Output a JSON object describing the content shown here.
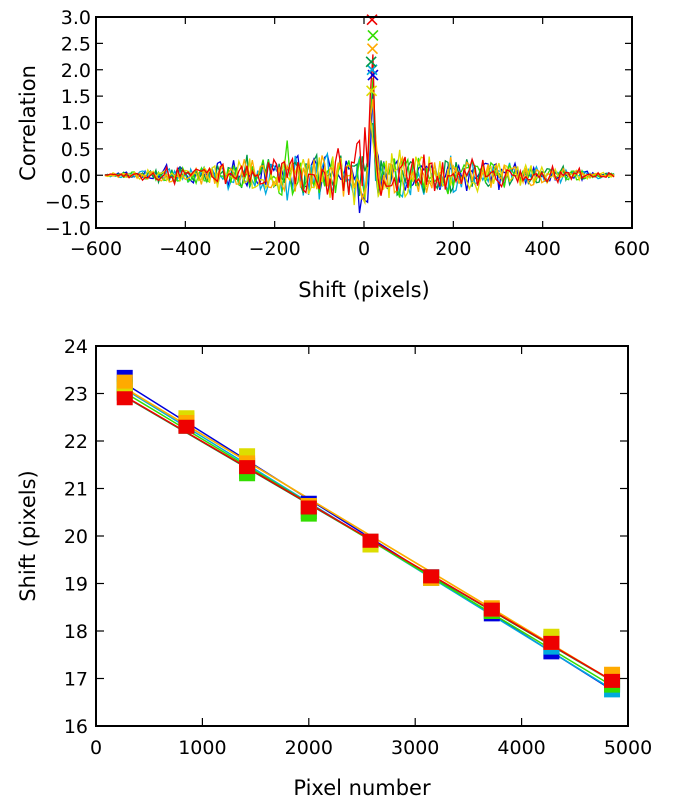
{
  "chart_data": [
    {
      "type": "line",
      "xlabel": "Shift (pixels)",
      "ylabel": "Correlation",
      "xlim": [
        -600,
        600
      ],
      "ylim": [
        -1.0,
        3.0
      ],
      "xticks": [
        "−600",
        "−400",
        "−200",
        "0",
        "200",
        "400",
        "600"
      ],
      "yticks": [
        "−1.0",
        "−0.5",
        "0.0",
        "0.5",
        "1.0",
        "1.5",
        "2.0",
        "2.5",
        "3.0"
      ],
      "grid": false,
      "legend": "none",
      "series": [
        {
          "color": "#0000dd",
          "peak_x": 20,
          "peak_y": 1.9,
          "marker": "x"
        },
        {
          "color": "#00aadd",
          "peak_x": 18,
          "peak_y": 2.0,
          "marker": "x"
        },
        {
          "color": "#009944",
          "peak_x": 16,
          "peak_y": 2.15,
          "marker": "x"
        },
        {
          "color": "#33dd00",
          "peak_x": 20,
          "peak_y": 2.65,
          "marker": "x"
        },
        {
          "color": "#dddd00",
          "peak_x": 17,
          "peak_y": 1.6,
          "marker": "x"
        },
        {
          "color": "#ffaa00",
          "peak_x": 19,
          "peak_y": 2.4,
          "marker": "x"
        },
        {
          "color": "#ee0000",
          "peak_x": 18,
          "peak_y": 2.95,
          "marker": "x"
        }
      ]
    },
    {
      "type": "line",
      "xlabel": "Pixel number",
      "ylabel": "Shift (pixels)",
      "xlim": [
        0,
        5000
      ],
      "ylim": [
        16,
        24
      ],
      "xticks": [
        "0",
        "1000",
        "2000",
        "3000",
        "4000",
        "5000"
      ],
      "yticks": [
        "16",
        "17",
        "18",
        "19",
        "20",
        "21",
        "22",
        "23",
        "24"
      ],
      "grid": false,
      "legend": "none",
      "x": [
        270,
        850,
        1420,
        2000,
        2580,
        3150,
        3720,
        4280,
        4850
      ],
      "series": [
        {
          "color": "#0000dd",
          "values": [
            23.35,
            22.4,
            21.5,
            20.7,
            19.9,
            19.15,
            18.35,
            17.55,
            16.85
          ]
        },
        {
          "color": "#00aadd",
          "values": [
            23.2,
            22.35,
            21.4,
            20.6,
            19.85,
            19.1,
            18.4,
            17.65,
            16.75
          ]
        },
        {
          "color": "#009944",
          "values": [
            23.0,
            22.3,
            21.35,
            20.5,
            19.85,
            19.15,
            18.45,
            17.85,
            16.9
          ]
        },
        {
          "color": "#33dd00",
          "values": [
            23.15,
            22.45,
            21.3,
            20.45,
            19.8,
            19.1,
            18.4,
            17.8,
            16.85
          ]
        },
        {
          "color": "#dddd00",
          "values": [
            23.1,
            22.5,
            21.7,
            20.65,
            19.8,
            19.1,
            18.45,
            17.9,
            17.0
          ]
        },
        {
          "color": "#ffaa00",
          "values": [
            23.25,
            22.4,
            21.55,
            20.65,
            19.9,
            19.1,
            18.5,
            17.75,
            17.1
          ]
        },
        {
          "color": "#ee0000",
          "values": [
            22.9,
            22.3,
            21.45,
            20.6,
            19.9,
            19.15,
            18.45,
            17.75,
            16.95
          ]
        }
      ]
    }
  ]
}
